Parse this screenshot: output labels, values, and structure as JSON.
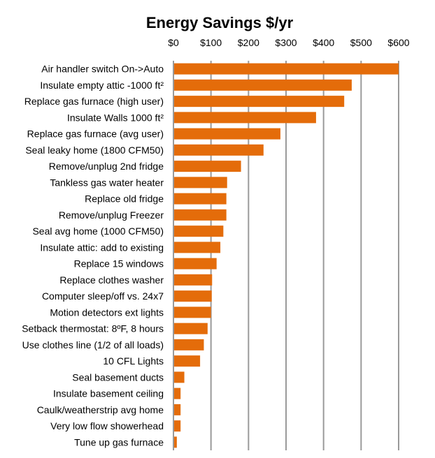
{
  "chart_data": {
    "type": "bar",
    "orientation": "horizontal",
    "title": "Energy Savings $/yr",
    "x_ticks": [
      "$0",
      "$100",
      "$200",
      "$300",
      "$400",
      "$500",
      "$600"
    ],
    "xlim": [
      0,
      600
    ],
    "x_axis_position": "top",
    "grid": true,
    "bar_color": "#E46C0A",
    "categories": [
      "Air handler switch On->Auto",
      "Insulate empty attic -1000 ft²",
      "Replace gas furnace (high user)",
      "Insulate Walls 1000 ft²",
      "Replace gas furnace (avg user)",
      "Seal leaky home (1800 CFM50)",
      "Remove/unplug 2nd fridge",
      "Tankless gas water heater",
      "Replace old fridge",
      "Remove/unplug Freezer",
      "Seal avg home (1000 CFM50)",
      "Insulate attic: add to existing",
      "Replace 15 windows",
      "Replace clothes washer",
      "Computer sleep/off vs. 24x7",
      "Motion detectors ext lights",
      "Setback thermostat: 8ºF, 8 hours",
      "Use clothes line (1/2 of all loads)",
      "10 CFL Lights",
      "Seal basement ducts",
      "Insulate basement ceiling",
      "Caulk/weatherstrip avg home",
      "Very low flow showerhead",
      "Tune up gas furnace"
    ],
    "values": [
      600,
      475,
      455,
      380,
      285,
      240,
      180,
      143,
      141,
      141,
      133,
      125,
      115,
      103,
      102,
      100,
      91,
      81,
      71,
      29,
      19,
      19,
      19,
      9
    ]
  }
}
